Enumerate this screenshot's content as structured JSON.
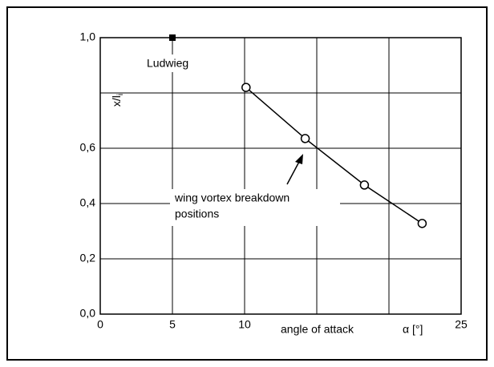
{
  "chart_data": {
    "type": "line",
    "ylabel": "x/l",
    "ylabel_subscript": "i",
    "xlabel": "angle of attack",
    "xunit": "α [°]",
    "xlim": [
      0,
      25
    ],
    "ylim": [
      0,
      1.0
    ],
    "xticks": [
      0,
      5,
      10,
      {
        "value": 15,
        "label": null
      },
      {
        "value": 20,
        "label": null
      },
      25
    ],
    "yticks": [
      {
        "value": 0,
        "label": "0,0"
      },
      {
        "value": 0.2,
        "label": "0,2"
      },
      {
        "value": 0.4,
        "label": "0,4"
      },
      {
        "value": 0.6,
        "label": "0,6"
      },
      {
        "value": 0.8,
        "label": null
      },
      {
        "value": 1.0,
        "label": "1,0"
      }
    ],
    "grid": true,
    "series": [
      {
        "name": "wing vortex breakdown positions",
        "name_lines": [
          "wing vortex breakdown",
          "positions"
        ],
        "color": "#000000",
        "marker": "circle",
        "line": true,
        "x": [
          10.1,
          14.2,
          18.3,
          22.3
        ],
        "values": [
          0.82,
          0.635,
          0.467,
          0.328
        ]
      },
      {
        "name": "Ludwieg",
        "color": "#000000",
        "marker": "square",
        "line": false,
        "x": [
          5
        ],
        "values": [
          1.0
        ]
      }
    ]
  }
}
